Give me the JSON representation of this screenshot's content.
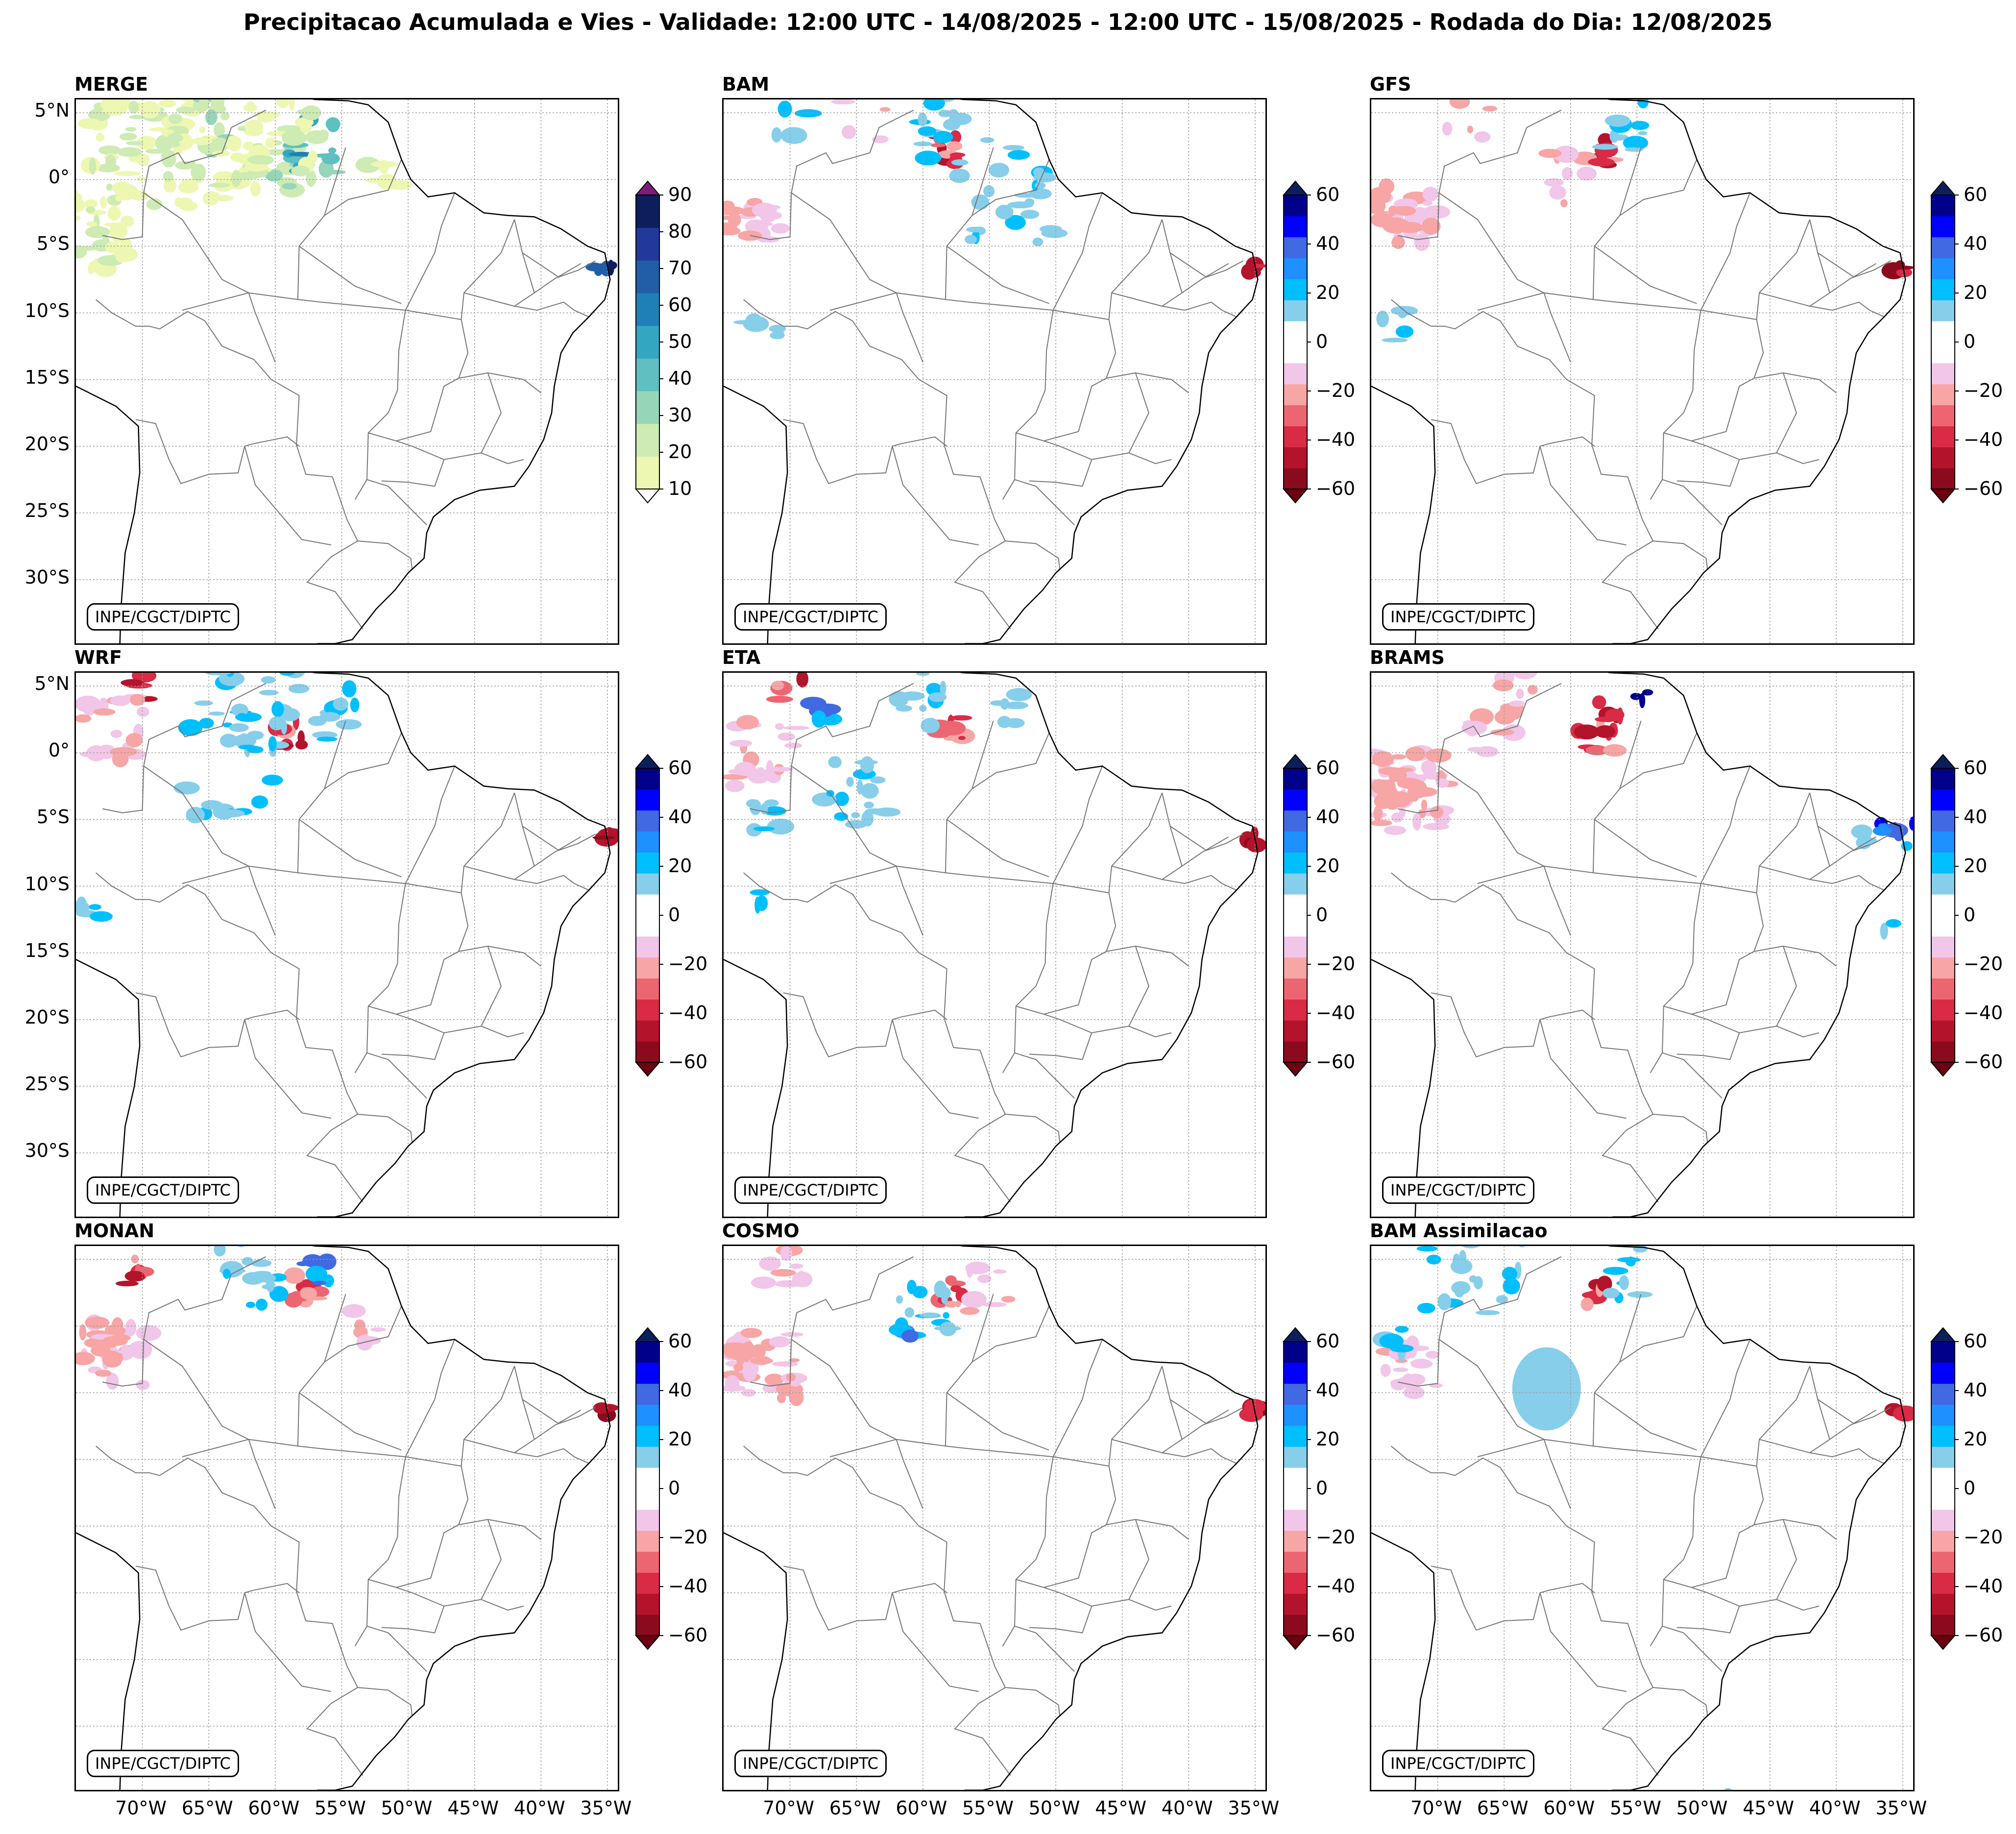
{
  "title": "Precipitacao Acumulada e Vies - Validade: 12:00 UTC - 14/08/2025 - 12:00 UTC - 15/08/2025 - Rodada do Dia: 12/08/2025",
  "credit": "INPE/CGCT/DIPTC",
  "lat_ticks": [
    "5°N",
    "0°",
    "5°S",
    "10°S",
    "15°S",
    "20°S",
    "25°S",
    "30°S"
  ],
  "lon_ticks": [
    "70°W",
    "65°W",
    "60°W",
    "55°W",
    "50°W",
    "45°W",
    "40°W",
    "35°W"
  ],
  "panels": [
    {
      "name": "MERGE",
      "type": "precipitation"
    },
    {
      "name": "BAM",
      "type": "bias"
    },
    {
      "name": "GFS",
      "type": "bias"
    },
    {
      "name": "WRF",
      "type": "bias"
    },
    {
      "name": "ETA",
      "type": "bias"
    },
    {
      "name": "BRAMS",
      "type": "bias"
    },
    {
      "name": "MONAN",
      "type": "bias"
    },
    {
      "name": "COSMO",
      "type": "bias"
    },
    {
      "name": "BAM Assimilacao",
      "type": "bias"
    }
  ],
  "precip_colorbar": {
    "ticks": [
      "90",
      "80",
      "70",
      "60",
      "50",
      "40",
      "30",
      "20",
      "10"
    ],
    "colors": [
      "#edf7b2",
      "#cdebb3",
      "#97d5b9",
      "#5fbfc1",
      "#33a6c2",
      "#1f80b8",
      "#225ea8",
      "#22399b",
      "#0c1f5c"
    ],
    "over_color": "#7b1e7a",
    "under_color": "#ffffff"
  },
  "bias_colorbar": {
    "ticks": [
      "60",
      "40",
      "20",
      "0",
      "−20",
      "−40",
      "−60"
    ],
    "colors": [
      "#8b0a1e",
      "#b4132c",
      "#d92b45",
      "#ec6672",
      "#f7a5a5",
      "#f1c6e8",
      "#ffffff",
      "#ffffff",
      "#87ceeb",
      "#00bfff",
      "#1e90ff",
      "#4169e1",
      "#0000ff",
      "#00008b"
    ],
    "over_color": "#0c1f5c",
    "under_color": "#6b0010"
  },
  "colors": {
    "coast": "#000000",
    "states": "#777777",
    "grid": "#999999"
  }
}
